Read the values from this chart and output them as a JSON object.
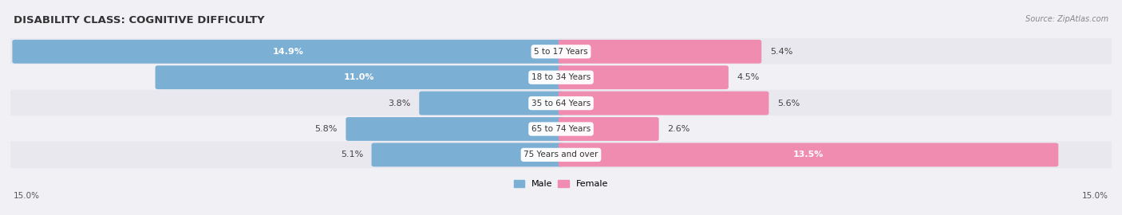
{
  "title": "DISABILITY CLASS: COGNITIVE DIFFICULTY",
  "source": "Source: ZipAtlas.com",
  "categories": [
    "5 to 17 Years",
    "18 to 34 Years",
    "35 to 64 Years",
    "65 to 74 Years",
    "75 Years and over"
  ],
  "male_values": [
    14.9,
    11.0,
    3.8,
    5.8,
    5.1
  ],
  "female_values": [
    5.4,
    4.5,
    5.6,
    2.6,
    13.5
  ],
  "male_color": "#7bafd4",
  "female_color": "#f08cb0",
  "male_label": "Male",
  "female_label": "Female",
  "max_val": 15.0,
  "axis_label_left": "15.0%",
  "axis_label_right": "15.0%",
  "bg_colors": [
    "#e8e8ee",
    "#f0f0f5"
  ],
  "title_fontsize": 9.5,
  "bar_fontsize": 8,
  "label_fontsize": 7.5
}
